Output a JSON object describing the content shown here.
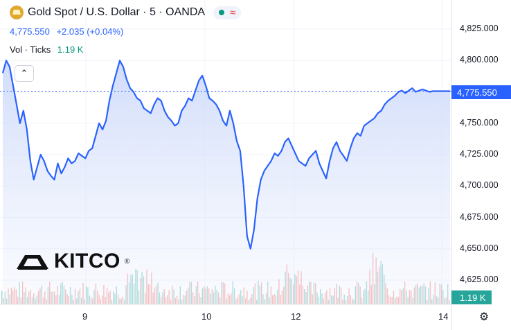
{
  "header": {
    "symbol_title": "Gold Spot / U.S. Dollar · 5 · OANDA",
    "approx_icon": "≈",
    "price_value": "4,775.550",
    "price_change": "+2.035 (+0.04%)",
    "vol_label": "Vol · Ticks",
    "vol_value": "1.19 K",
    "collapse_icon": "⌃"
  },
  "branding": {
    "logo_text": "KITCO",
    "logo_reg": "®"
  },
  "last_price_label": "4,775.550",
  "volume_axis_label": "1.19 K",
  "settings_icon": "⚙",
  "colors": {
    "line": "#2962ff",
    "area_top": "#d6e0fb",
    "vol_up": "#26a69a",
    "vol_down": "#ef5350"
  },
  "chart_data": {
    "type": "area",
    "series": [
      {
        "type": "line",
        "x": [
          0,
          5,
          10,
          15,
          20,
          25,
          30,
          35,
          40,
          45,
          50,
          55,
          60,
          65,
          70,
          75,
          80,
          85,
          90,
          95,
          100,
          105,
          110,
          115,
          120,
          125,
          130,
          135,
          140,
          145,
          150,
          155,
          160,
          165,
          170,
          175,
          180,
          185,
          190,
          195,
          200,
          205,
          210,
          215,
          220,
          225,
          230,
          235,
          240,
          245,
          250,
          255,
          260,
          265,
          270,
          275,
          280,
          285,
          290,
          295,
          300,
          305,
          310,
          315,
          320,
          325,
          330,
          335,
          340,
          345,
          350,
          355,
          360,
          365,
          370,
          375,
          380,
          385,
          390,
          395,
          400,
          405,
          410,
          415,
          420,
          425,
          430,
          435,
          440,
          445,
          450,
          455,
          460,
          465,
          470,
          475,
          480,
          485,
          490,
          495,
          500,
          505,
          510,
          515,
          520,
          525,
          530,
          535,
          540,
          545,
          550,
          555,
          560,
          565,
          570,
          575,
          580,
          585,
          590,
          595,
          600,
          605,
          610,
          615,
          620,
          625,
          630,
          635,
          640,
          645,
          650
        ],
        "values": [
          4790,
          4800,
          4795,
          4780,
          4765,
          4750,
          4760,
          4745,
          4720,
          4705,
          4715,
          4725,
          4720,
          4712,
          4708,
          4705,
          4718,
          4710,
          4715,
          4722,
          4718,
          4720,
          4726,
          4724,
          4722,
          4728,
          4730,
          4740,
          4750,
          4745,
          4752,
          4768,
          4780,
          4790,
          4800,
          4795,
          4785,
          4778,
          4775,
          4770,
          4768,
          4762,
          4760,
          4758,
          4765,
          4770,
          4768,
          4760,
          4755,
          4752,
          4748,
          4750,
          4760,
          4764,
          4770,
          4768,
          4776,
          4784,
          4788,
          4780,
          4770,
          4768,
          4765,
          4760,
          4752,
          4748,
          4760,
          4750,
          4736,
          4728,
          4700,
          4660,
          4650,
          4665,
          4690,
          4705,
          4712,
          4716,
          4720,
          4726,
          4724,
          4728,
          4735,
          4738,
          4732,
          4726,
          4720,
          4718,
          4716,
          4722,
          4725,
          4728,
          4718,
          4712,
          4706,
          4720,
          4730,
          4735,
          4728,
          4724,
          4720,
          4730,
          4738,
          4742,
          4740,
          4748,
          4750,
          4752,
          4754,
          4758,
          4760,
          4765,
          4768,
          4770,
          4772,
          4775,
          4776,
          4774,
          4776,
          4778,
          4775,
          4776,
          4777,
          4776,
          4775,
          4775.55,
          4775.55,
          4775.55,
          4775.55,
          4775.55,
          4775.55
        ]
      }
    ],
    "yticks": [
      "4,825.000",
      "4,800.000",
      "4,775.000",
      "4,750.000",
      "4,725.000",
      "4,700.000",
      "4,675.000",
      "4,650.000",
      "4,625.000"
    ],
    "xticks": [
      "9",
      "10",
      "12",
      "14"
    ],
    "ylim": [
      4610,
      4833
    ],
    "last_price": 4775.55,
    "grid": true
  }
}
